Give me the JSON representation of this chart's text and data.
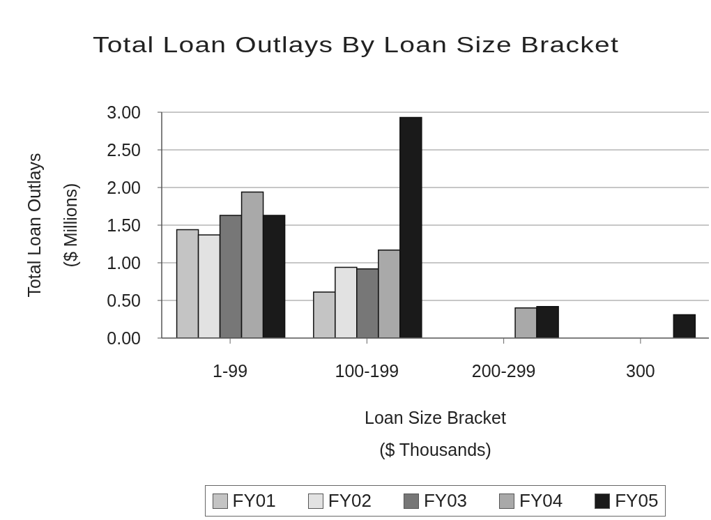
{
  "chart_data": {
    "type": "bar",
    "title": "Total Loan Outlays By Loan Size Bracket",
    "xlabel": "Loan Size Bracket\n($ Thousands)",
    "ylabel": "Total Loan Outlays\n($ Millions)",
    "categories": [
      "1-99",
      "100-199",
      "200-299",
      "300"
    ],
    "series": [
      {
        "name": "FY01",
        "color": "#c4c4c4",
        "values": [
          1.44,
          0.61,
          null,
          null
        ]
      },
      {
        "name": "FY02",
        "color": "#e2e2e2",
        "values": [
          1.37,
          0.94,
          null,
          null
        ]
      },
      {
        "name": "FY03",
        "color": "#777777",
        "values": [
          1.63,
          0.92,
          null,
          null
        ]
      },
      {
        "name": "FY04",
        "color": "#a9a9a9",
        "values": [
          1.94,
          1.17,
          0.4,
          null
        ]
      },
      {
        "name": "FY05",
        "color": "#1a1a1a",
        "values": [
          1.63,
          2.93,
          0.42,
          0.31
        ]
      }
    ],
    "ylim": [
      0,
      3
    ],
    "yticks": [
      {
        "value": 0,
        "label": "0.00"
      },
      {
        "value": 0.5,
        "label": "0.50"
      },
      {
        "value": 1,
        "label": "1.00"
      },
      {
        "value": 1.5,
        "label": "1.50"
      },
      {
        "value": 2,
        "label": "2.00"
      },
      {
        "value": 2.5,
        "label": "2.50"
      },
      {
        "value": 3,
        "label": "3.00"
      }
    ],
    "grid": "y",
    "legend": "bottom"
  }
}
